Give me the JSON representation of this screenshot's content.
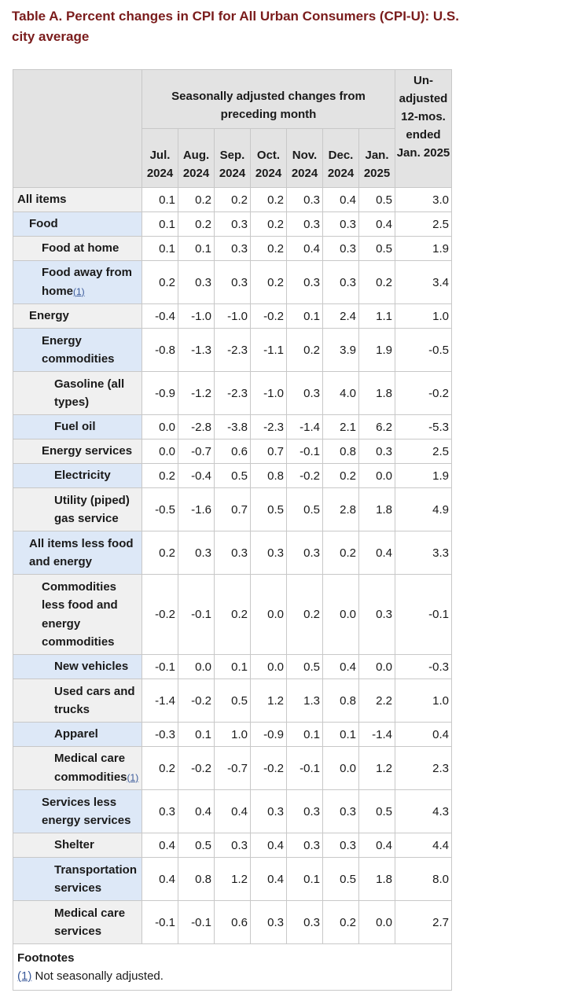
{
  "title": "Table A. Percent changes in CPI for All Urban Consumers (CPI-U): U.S. city average",
  "header": {
    "span_label": "Seasonally adjusted changes from preceding month",
    "unadjusted_label": "Un-adjusted 12-mos. ended Jan. 2025",
    "months": [
      "Jul. 2024",
      "Aug. 2024",
      "Sep. 2024",
      "Oct. 2024",
      "Nov. 2024",
      "Dec. 2024",
      "Jan. 2025"
    ]
  },
  "rows": [
    {
      "label": "All items",
      "values": [
        "0.1",
        "0.2",
        "0.2",
        "0.2",
        "0.3",
        "0.4",
        "0.5",
        "3.0"
      ]
    },
    {
      "label": "Food",
      "values": [
        "0.1",
        "0.2",
        "0.3",
        "0.2",
        "0.3",
        "0.3",
        "0.4",
        "2.5"
      ]
    },
    {
      "label": "Food at home",
      "values": [
        "0.1",
        "0.1",
        "0.3",
        "0.2",
        "0.4",
        "0.3",
        "0.5",
        "1.9"
      ]
    },
    {
      "label": "Food away from home",
      "footnote": "(1)",
      "values": [
        "0.2",
        "0.3",
        "0.3",
        "0.2",
        "0.3",
        "0.3",
        "0.2",
        "3.4"
      ]
    },
    {
      "label": "Energy",
      "values": [
        "-0.4",
        "-1.0",
        "-1.0",
        "-0.2",
        "0.1",
        "2.4",
        "1.1",
        "1.0"
      ]
    },
    {
      "label": "Energy commodities",
      "values": [
        "-0.8",
        "-1.3",
        "-2.3",
        "-1.1",
        "0.2",
        "3.9",
        "1.9",
        "-0.5"
      ]
    },
    {
      "label": "Gasoline (all types)",
      "values": [
        "-0.9",
        "-1.2",
        "-2.3",
        "-1.0",
        "0.3",
        "4.0",
        "1.8",
        "-0.2"
      ]
    },
    {
      "label": "Fuel oil",
      "values": [
        "0.0",
        "-2.8",
        "-3.8",
        "-2.3",
        "-1.4",
        "2.1",
        "6.2",
        "-5.3"
      ]
    },
    {
      "label": "Energy services",
      "values": [
        "0.0",
        "-0.7",
        "0.6",
        "0.7",
        "-0.1",
        "0.8",
        "0.3",
        "2.5"
      ]
    },
    {
      "label": "Electricity",
      "values": [
        "0.2",
        "-0.4",
        "0.5",
        "0.8",
        "-0.2",
        "0.2",
        "0.0",
        "1.9"
      ]
    },
    {
      "label": "Utility (piped) gas service",
      "values": [
        "-0.5",
        "-1.6",
        "0.7",
        "0.5",
        "0.5",
        "2.8",
        "1.8",
        "4.9"
      ]
    },
    {
      "label": "All items less food and energy",
      "values": [
        "0.2",
        "0.3",
        "0.3",
        "0.3",
        "0.3",
        "0.2",
        "0.4",
        "3.3"
      ]
    },
    {
      "label": "Commodities less food and energy commodities",
      "values": [
        "-0.2",
        "-0.1",
        "0.2",
        "0.0",
        "0.2",
        "0.0",
        "0.3",
        "-0.1"
      ]
    },
    {
      "label": "New vehicles",
      "values": [
        "-0.1",
        "0.0",
        "0.1",
        "0.0",
        "0.5",
        "0.4",
        "0.0",
        "-0.3"
      ]
    },
    {
      "label": "Used cars and trucks",
      "values": [
        "-1.4",
        "-0.2",
        "0.5",
        "1.2",
        "1.3",
        "0.8",
        "2.2",
        "1.0"
      ]
    },
    {
      "label": "Apparel",
      "values": [
        "-0.3",
        "0.1",
        "1.0",
        "-0.9",
        "0.1",
        "0.1",
        "-1.4",
        "0.4"
      ]
    },
    {
      "label": "Medical care commodities",
      "footnote": "(1)",
      "values": [
        "0.2",
        "-0.2",
        "-0.7",
        "-0.2",
        "-0.1",
        "0.0",
        "1.2",
        "2.3"
      ]
    },
    {
      "label": "Services less energy services",
      "values": [
        "0.3",
        "0.4",
        "0.4",
        "0.3",
        "0.3",
        "0.3",
        "0.5",
        "4.3"
      ]
    },
    {
      "label": "Shelter",
      "values": [
        "0.4",
        "0.5",
        "0.3",
        "0.4",
        "0.3",
        "0.3",
        "0.4",
        "4.4"
      ]
    },
    {
      "label": "Transportation services",
      "values": [
        "0.4",
        "0.8",
        "1.2",
        "0.4",
        "0.1",
        "0.5",
        "1.8",
        "8.0"
      ]
    },
    {
      "label": "Medical care services",
      "values": [
        "-0.1",
        "-0.1",
        "0.6",
        "0.3",
        "0.3",
        "0.2",
        "0.0",
        "2.7"
      ]
    }
  ],
  "footnotes": {
    "heading": "Footnotes",
    "ref": "(1)",
    "text": " Not seasonally adjusted."
  }
}
